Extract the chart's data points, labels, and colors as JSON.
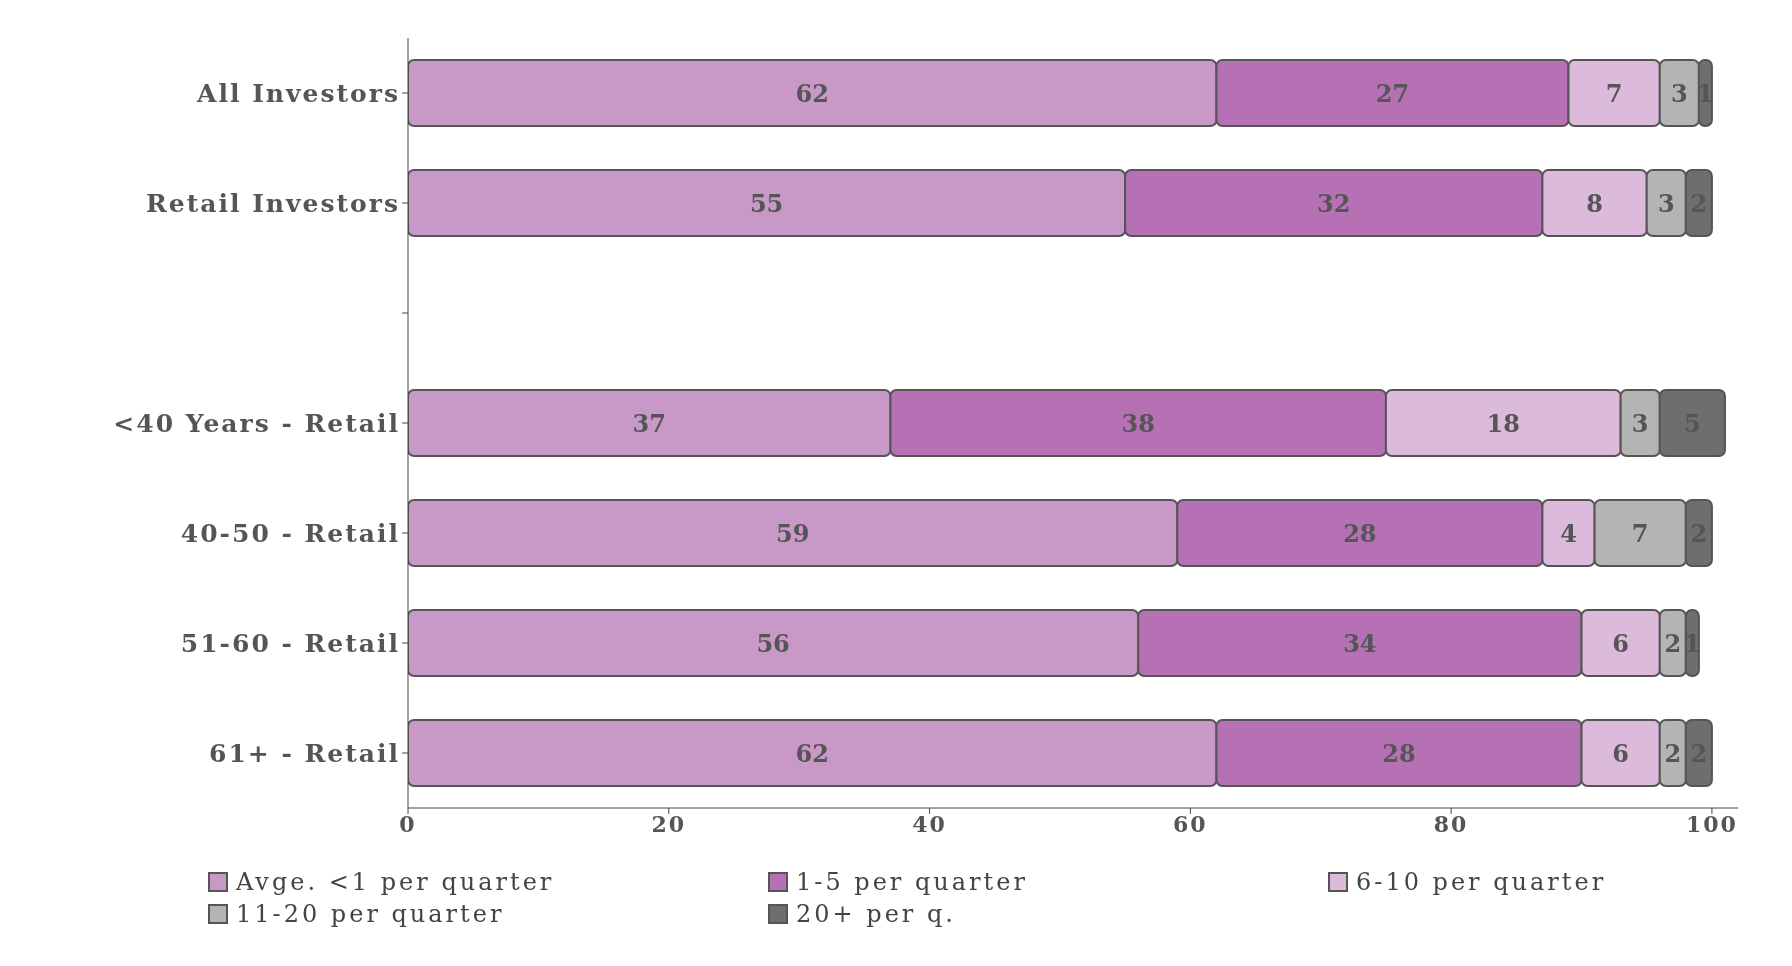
{
  "chart_data": {
    "type": "bar",
    "orientation": "horizontal",
    "stacked": true,
    "data_labels": true,
    "grid": false,
    "legend": "bottom",
    "categories": [
      "All Investors",
      "Retail Investors",
      null,
      "<40 Years - Retail",
      "40-50 - Retail",
      "51-60 - Retail",
      "61+ - Retail"
    ],
    "xlim": [
      0,
      102
    ],
    "xticks": [
      0,
      20,
      40,
      60,
      80,
      100
    ],
    "series": [
      {
        "name": "Avge. <1 per quarter",
        "color": "#c898c6",
        "values": [
          62,
          55,
          null,
          37,
          59,
          56,
          62
        ]
      },
      {
        "name": "1-5 per quarter",
        "color": "#b670b4",
        "values": [
          27,
          32,
          null,
          38,
          28,
          34,
          28
        ]
      },
      {
        "name": "6-10 per quarter",
        "color": "#dcbadc",
        "values": [
          7,
          8,
          null,
          18,
          4,
          6,
          6
        ]
      },
      {
        "name": "11-20 per quarter",
        "color": "#b4b4b4",
        "values": [
          3,
          3,
          null,
          3,
          7,
          2,
          2
        ]
      },
      {
        "name": "20+ per q.",
        "color": "#6e6e6e",
        "values": [
          1,
          2,
          null,
          5,
          2,
          1,
          2
        ]
      }
    ]
  }
}
